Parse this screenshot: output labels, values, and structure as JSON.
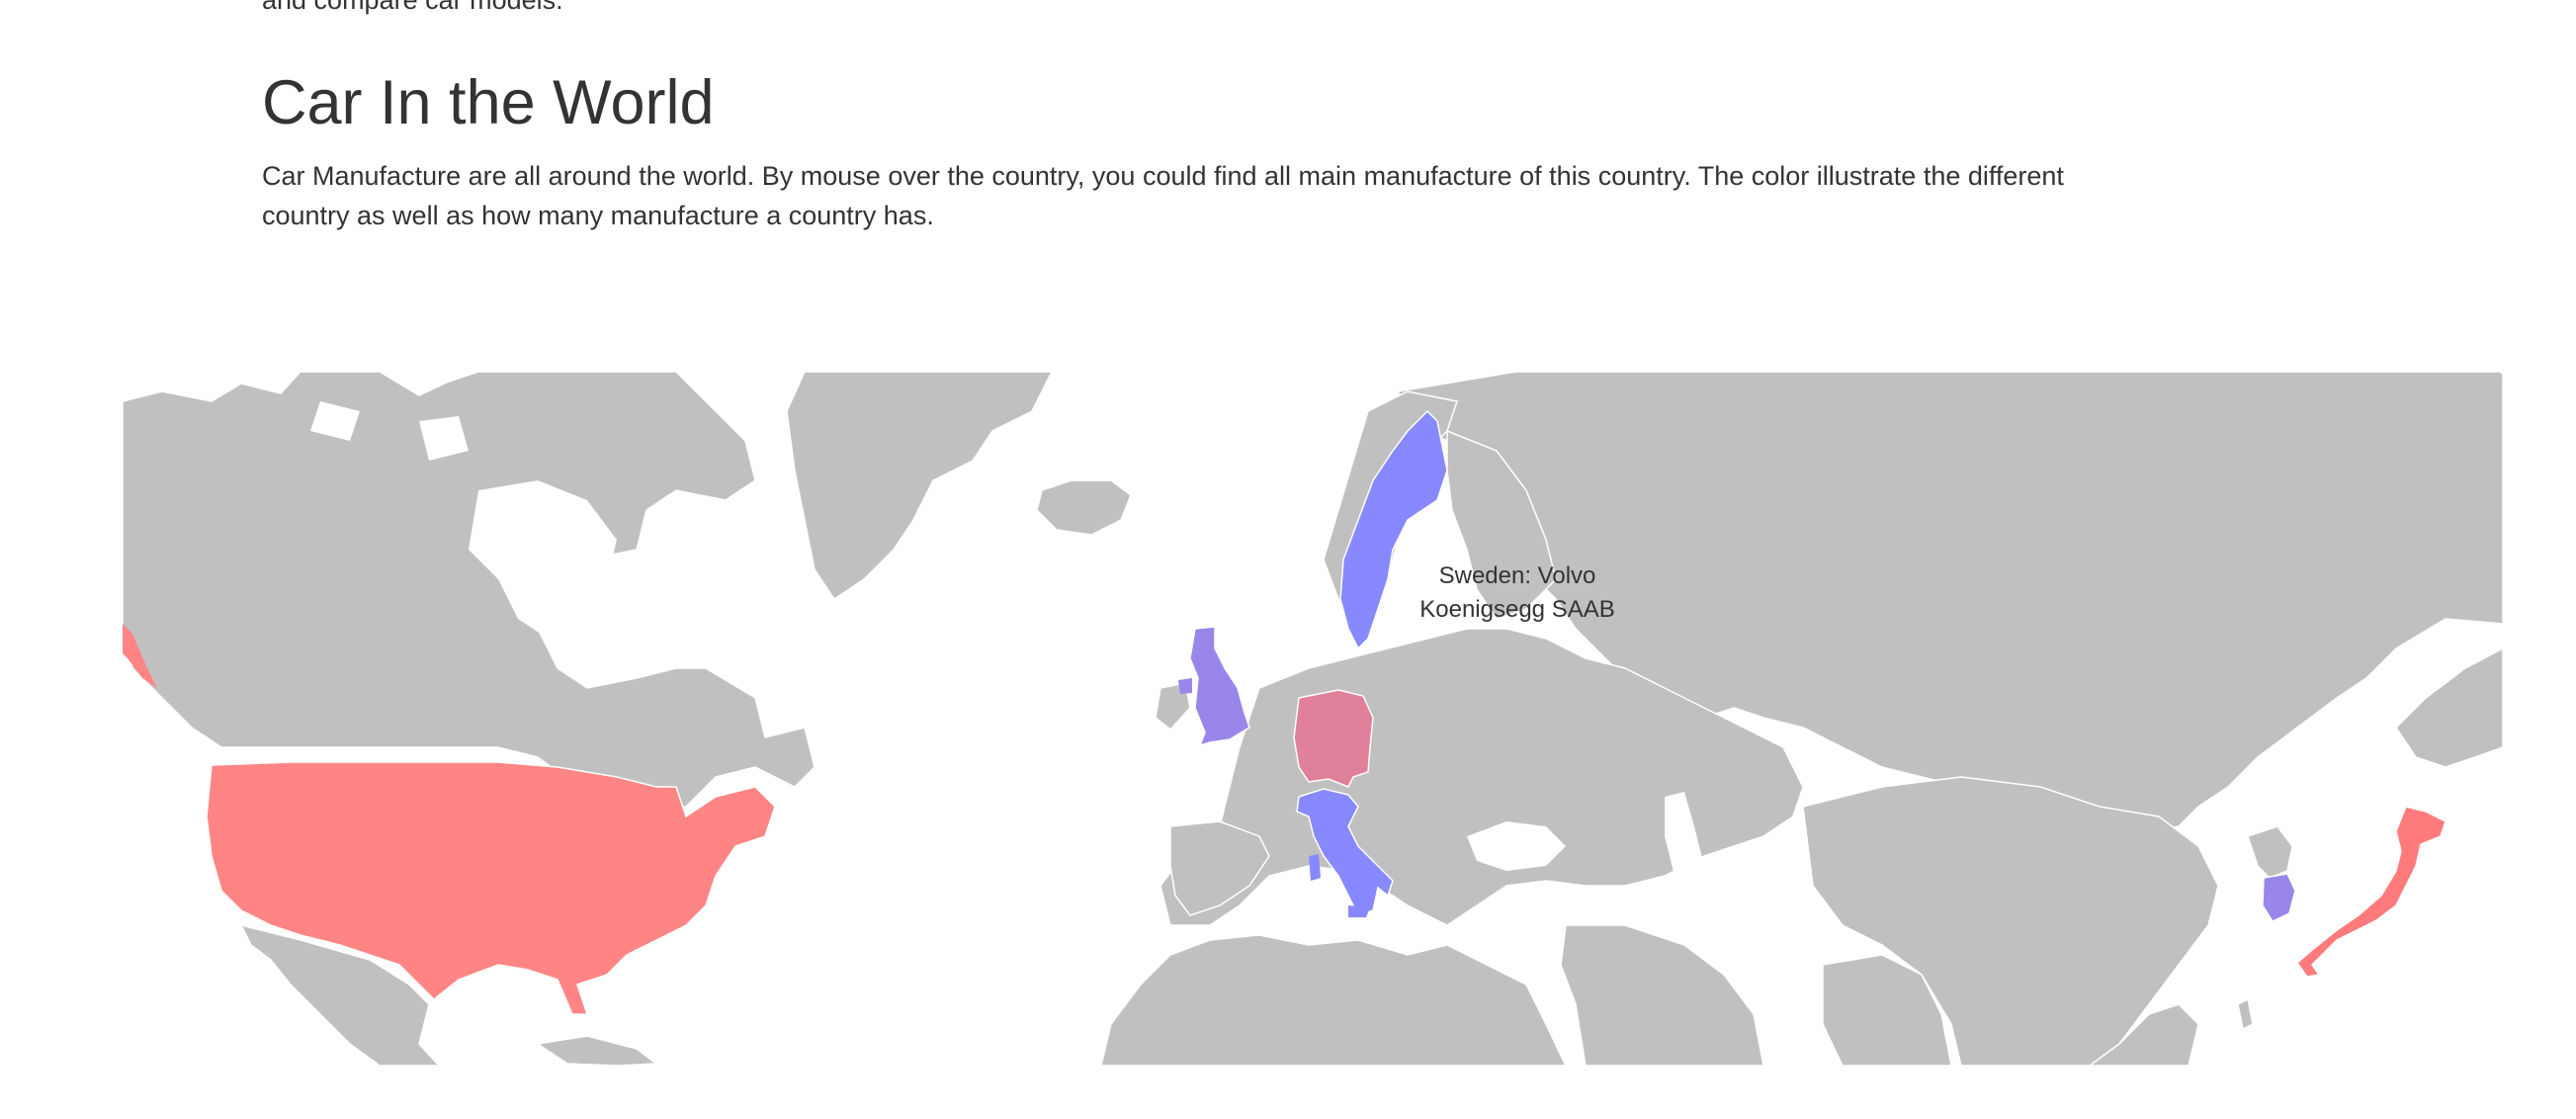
{
  "page": {
    "prev_paragraph_tail": "and compare car models.",
    "section_title": "Car In the World",
    "section_description": "Car Manufacture are all around the world. By mouse over the country, you could find all main manufacture of this country. The color illustrate the different country as well as how many manufacture a country has."
  },
  "map": {
    "base_color": "#c0c0c0",
    "highlighted_countries": [
      {
        "name": "United States",
        "color": "#ff8585"
      },
      {
        "name": "Japan",
        "color": "#ff7a7a"
      },
      {
        "name": "Germany",
        "color": "#e0809a"
      },
      {
        "name": "United Kingdom",
        "color": "#9a85ea"
      },
      {
        "name": "South Korea",
        "color": "#9a85ea"
      },
      {
        "name": "Sweden",
        "color": "#8888ff"
      },
      {
        "name": "Italy",
        "color": "#8888ff"
      }
    ],
    "tooltip": {
      "line1": "Sweden: Volvo",
      "line2": "Koenigsegg SAAB"
    }
  }
}
